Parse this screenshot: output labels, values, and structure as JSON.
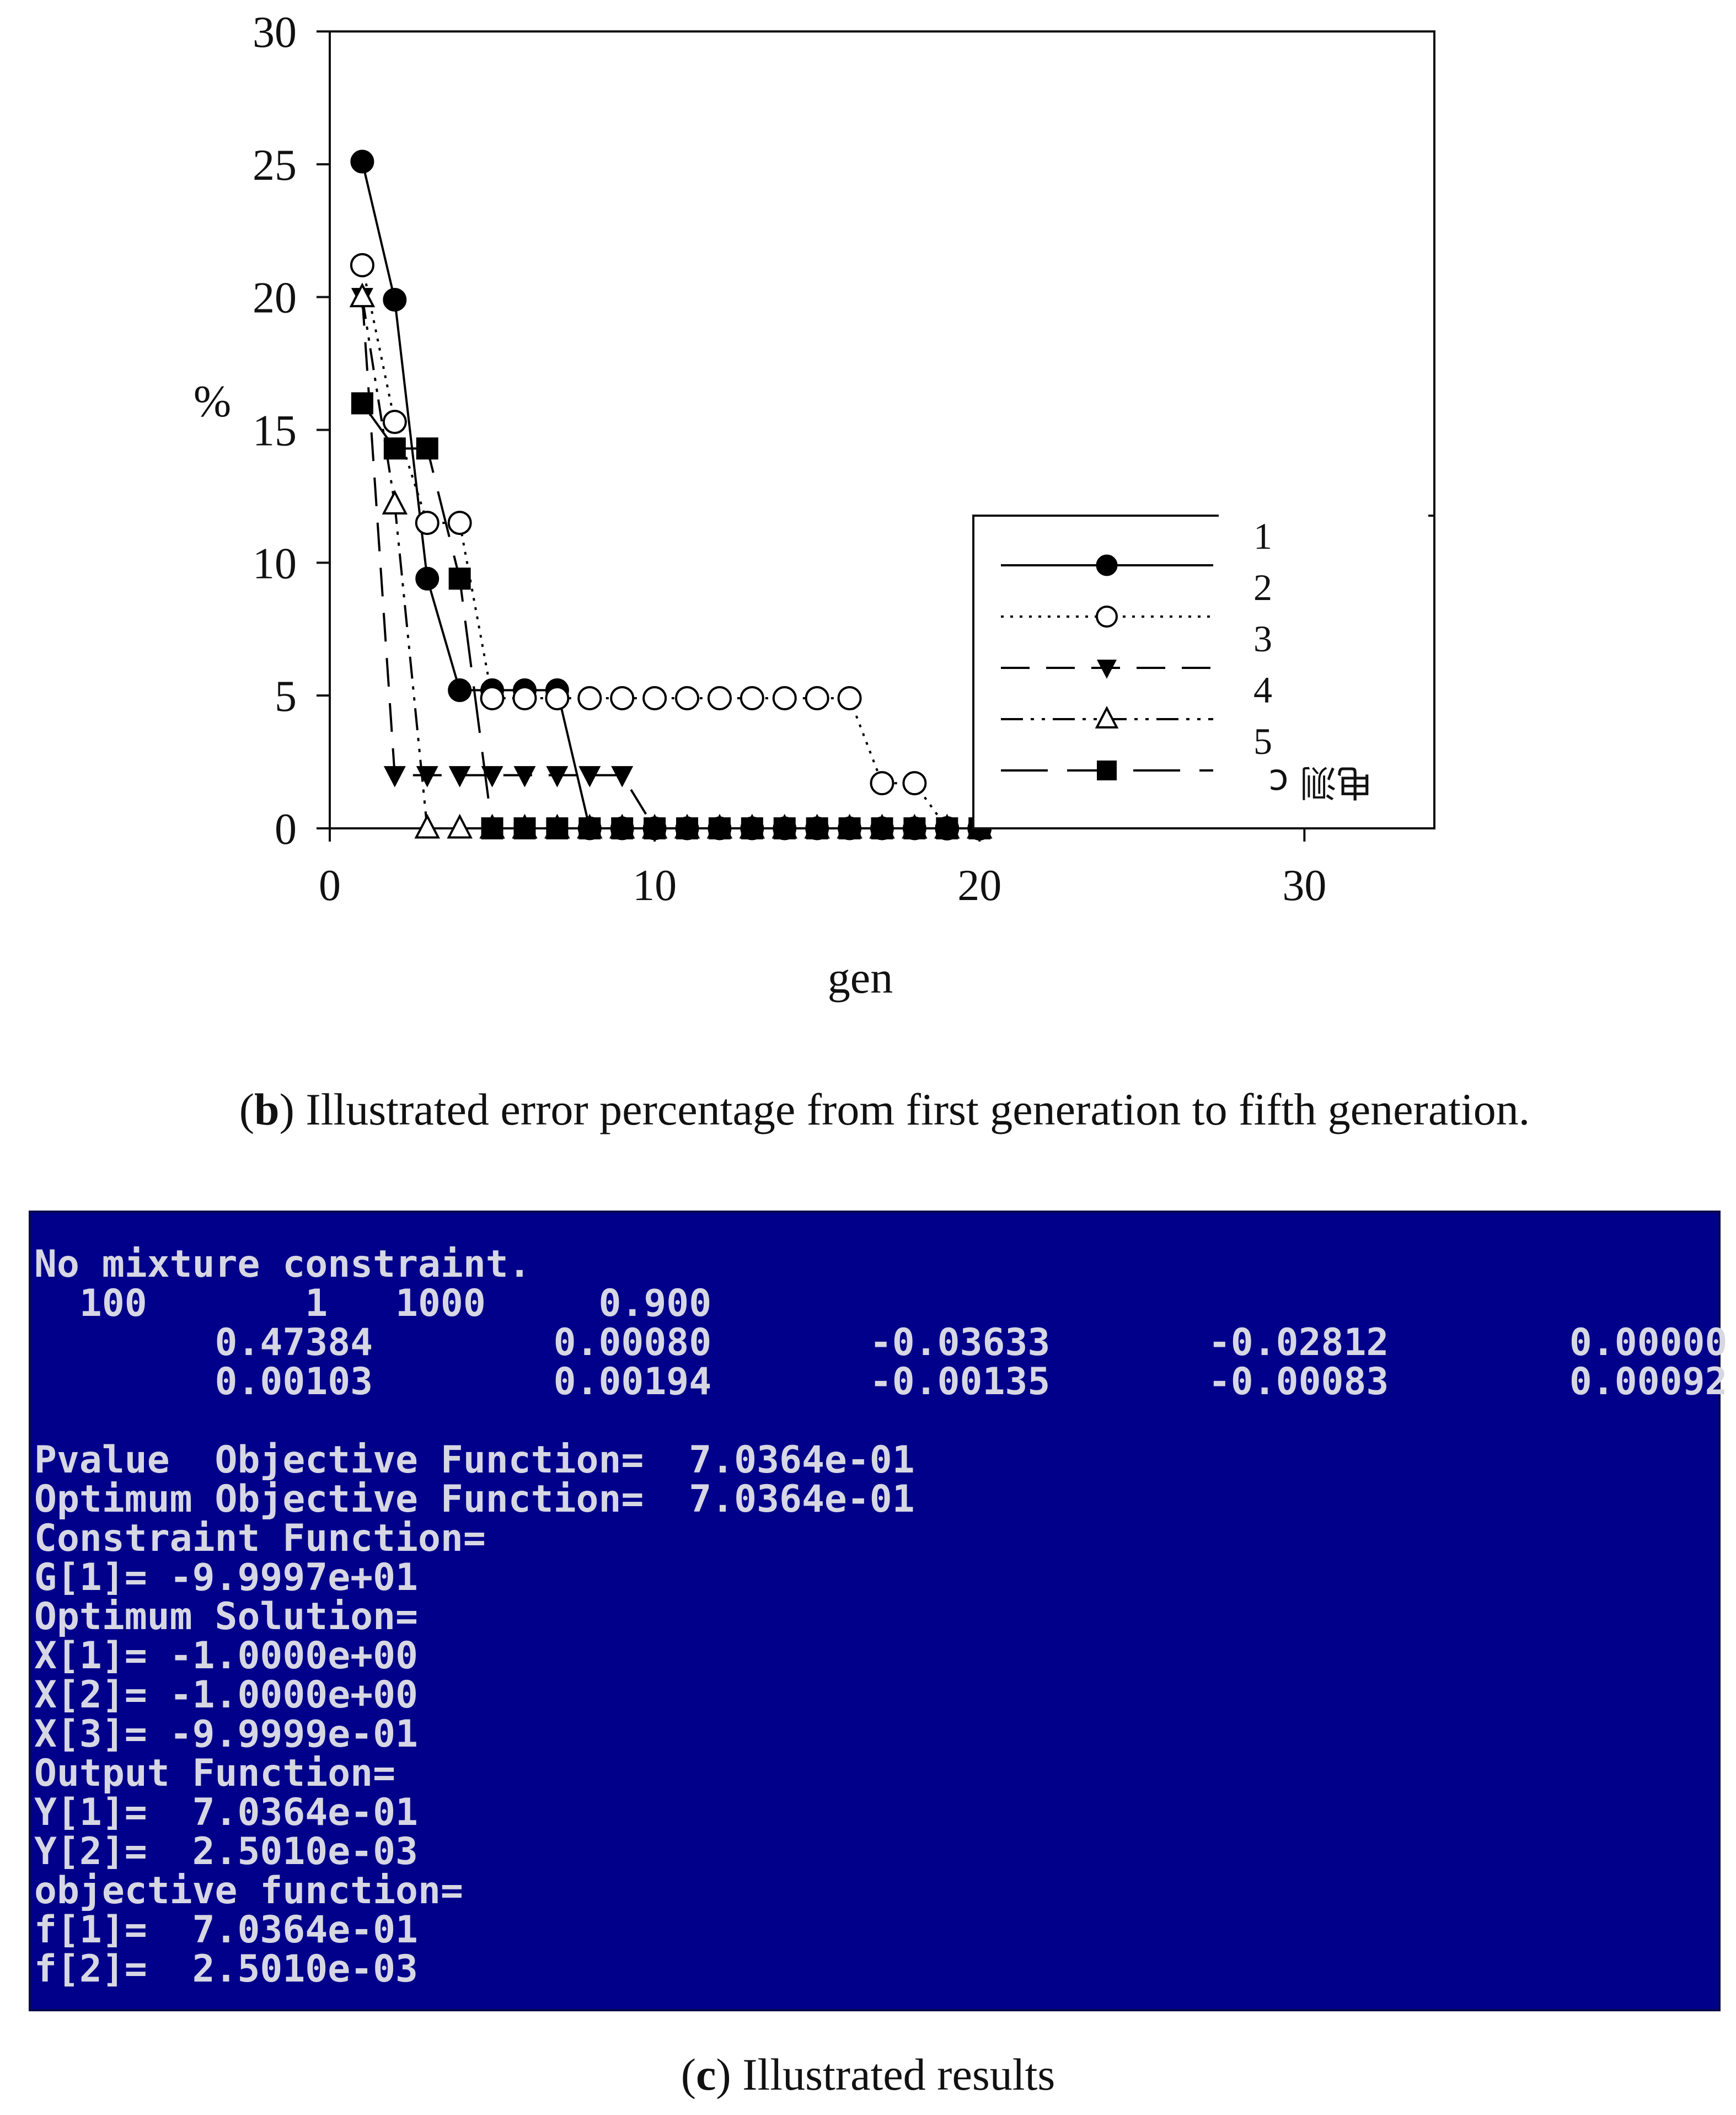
{
  "chart_data": {
    "type": "line",
    "title": "",
    "xlabel": "gen",
    "ylabel": "%",
    "xlim": [
      0,
      34
    ],
    "ylim": [
      0,
      30
    ],
    "x_ticks": [
      "0",
      "10",
      "20",
      "30"
    ],
    "y_ticks": [
      "0",
      "5",
      "10",
      "15",
      "20",
      "25",
      "30"
    ],
    "grid": false,
    "legend": "right, inside plot",
    "legend_labels": [
      "1",
      "2",
      "3",
      "4",
      "5"
    ],
    "legend_garbled_text": "电测 c",
    "series": [
      {
        "name": "1",
        "marker": "filled-circle",
        "line": "solid",
        "x": [
          1,
          2,
          3,
          4,
          5,
          6,
          7,
          8,
          9,
          10,
          11,
          12,
          13,
          14,
          15,
          16,
          17,
          18,
          19,
          20
        ],
        "y": [
          25.1,
          19.9,
          9.4,
          5.2,
          5.2,
          5.2,
          5.2,
          0,
          0,
          0,
          0,
          0,
          0,
          0,
          0,
          0,
          0,
          0,
          0,
          0
        ]
      },
      {
        "name": "2",
        "marker": "open-circle",
        "line": "dotted",
        "x": [
          1,
          2,
          3,
          4,
          5,
          6,
          7,
          8,
          9,
          10,
          11,
          12,
          13,
          14,
          15,
          16,
          17,
          18,
          19,
          20
        ],
        "y": [
          21.2,
          15.3,
          11.5,
          11.5,
          4.9,
          4.9,
          4.9,
          4.9,
          4.9,
          4.9,
          4.9,
          4.9,
          4.9,
          4.9,
          4.9,
          4.9,
          1.7,
          1.7,
          0,
          0
        ]
      },
      {
        "name": "3",
        "marker": "filled-triangle-down",
        "line": "dashed",
        "x": [
          1,
          2,
          3,
          4,
          5,
          6,
          7,
          8,
          9,
          10,
          11,
          12,
          13,
          14,
          15,
          16,
          17,
          18,
          19,
          20
        ],
        "y": [
          20,
          2,
          2,
          2,
          2,
          2,
          2,
          2,
          2,
          0,
          0,
          0,
          0,
          0,
          0,
          0,
          0,
          0,
          0,
          0
        ]
      },
      {
        "name": "4",
        "marker": "open-triangle-up",
        "line": "dash-dot-dot",
        "x": [
          1,
          2,
          3,
          4,
          5,
          6,
          7,
          8,
          9,
          10,
          11,
          12,
          13,
          14,
          15,
          16,
          17,
          18,
          19,
          20
        ],
        "y": [
          20,
          12.2,
          0,
          0,
          0,
          0,
          0,
          0,
          0,
          0,
          0,
          0,
          0,
          0,
          0,
          0,
          0,
          0,
          0,
          0
        ]
      },
      {
        "name": "5",
        "marker": "filled-square",
        "line": "long-dash",
        "x": [
          1,
          2,
          3,
          4,
          5,
          6,
          7,
          8,
          9,
          10,
          11,
          12,
          13,
          14,
          15,
          16,
          17,
          18,
          19,
          20
        ],
        "y": [
          16,
          14.3,
          14.3,
          9.4,
          0,
          0,
          0,
          0,
          0,
          0,
          0,
          0,
          0,
          0,
          0,
          0,
          0,
          0,
          0,
          0
        ]
      }
    ]
  },
  "captions": {
    "b_letter": "b",
    "b_text": " Illustrated error percentage from first generation to fifth generation.",
    "c_letter": "c",
    "c_text": " Illustrated results"
  },
  "console": {
    "background": "#00008a",
    "text_color": "#d7d7e4",
    "lines": [
      "No mixture constraint.",
      "  100       1   1000     0.900",
      "        0.47384        0.00080       -0.03633       -0.02812        0.00000",
      "        0.00103        0.00194       -0.00135       -0.00083        0.00092",
      "",
      "Pvalue  Objective Function=  7.0364e-01",
      "Optimum Objective Function=  7.0364e-01",
      "Constraint Function=",
      "G[1]= -9.9997e+01",
      "Optimum Solution=",
      "X[1]= -1.0000e+00",
      "X[2]= -1.0000e+00",
      "X[3]= -9.9999e-01",
      "Output Function=",
      "Y[1]=  7.0364e-01",
      "Y[2]=  2.5010e-03",
      "objective function=",
      "f[1]=  7.0364e-01",
      "f[2]=  2.5010e-03"
    ]
  }
}
